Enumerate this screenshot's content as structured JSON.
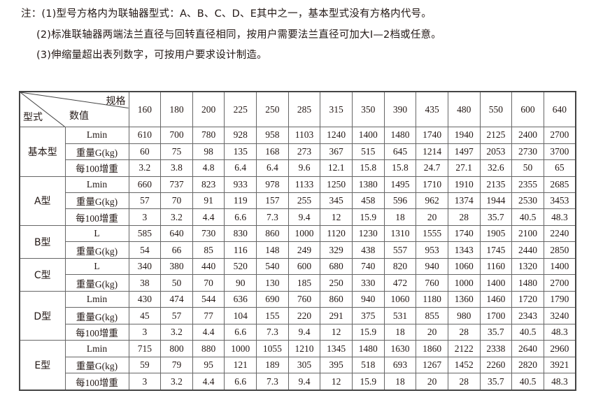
{
  "notes": [
    "注：(1)型号方格内为联轴器型式：A、B、C、D、E其中之一，基本型式没有方格内代号。",
    "(2)标准联轴器两端法兰直径与回转直径相同，按用户需要法兰直径可加大Ⅰ—2档或任意。",
    "(3)伸缩量超出表列数字，可按用户要求设计制造。"
  ],
  "table": {
    "corner": {
      "spec": "规格",
      "value": "数值",
      "type": "型式"
    },
    "specs": [
      "160",
      "180",
      "200",
      "225",
      "250",
      "285",
      "315",
      "350",
      "390",
      "435",
      "480",
      "550",
      "600",
      "640"
    ],
    "groups": [
      {
        "type": "基本型",
        "rows": [
          {
            "param": "Lmin",
            "values": [
              "610",
              "700",
              "780",
              "928",
              "958",
              "1103",
              "1240",
              "1400",
              "1480",
              "1740",
              "1940",
              "2125",
              "2400",
              "2700"
            ]
          },
          {
            "param": "重量G(kg)",
            "values": [
              "60",
              "75",
              "98",
              "135",
              "168",
              "273",
              "367",
              "515",
              "645",
              "1214",
              "1497",
              "2053",
              "2730",
              "3700"
            ]
          },
          {
            "param": "每100增重",
            "values": [
              "3.2",
              "3.8",
              "4.8",
              "6.4",
              "6.4",
              "9.6",
              "12.1",
              "15.8",
              "15.8",
              "24.7",
              "27.1",
              "32.6",
              "50",
              "65"
            ]
          }
        ]
      },
      {
        "type": "A型",
        "rows": [
          {
            "param": "Lmin",
            "values": [
              "660",
              "737",
              "823",
              "933",
              "978",
              "1133",
              "1250",
              "1380",
              "1495",
              "1710",
              "1910",
              "2135",
              "2355",
              "2685"
            ]
          },
          {
            "param": "重量G(kg)",
            "values": [
              "57",
              "70",
              "91",
              "119",
              "157",
              "255",
              "345",
              "458",
              "596",
              "962",
              "1374",
              "1944",
              "2530",
              "3453"
            ]
          },
          {
            "param": "每100增重",
            "values": [
              "3",
              "3.2",
              "4.4",
              "6.6",
              "7.3",
              "9.4",
              "12",
              "15.9",
              "18",
              "20",
              "28",
              "35.7",
              "40.5",
              "48.3"
            ]
          }
        ]
      },
      {
        "type": "B型",
        "rows": [
          {
            "param": "L",
            "values": [
              "585",
              "640",
              "730",
              "830",
              "860",
              "1000",
              "1120",
              "1230",
              "1310",
              "1555",
              "1740",
              "1905",
              "2100",
              "2240"
            ]
          },
          {
            "param": "重量G(kg)",
            "values": [
              "54",
              "66",
              "85",
              "116",
              "148",
              "249",
              "329",
              "438",
              "557",
              "953",
              "1343",
              "1745",
              "2440",
              "2850"
            ]
          }
        ]
      },
      {
        "type": "C型",
        "rows": [
          {
            "param": "L",
            "values": [
              "340",
              "380",
              "440",
              "520",
              "540",
              "600",
              "680",
              "740",
              "820",
              "940",
              "1060",
              "1160",
              "1320",
              "1400"
            ]
          },
          {
            "param": "重量G(kg)",
            "values": [
              "38",
              "50",
              "70",
              "90",
              "130",
              "185",
              "250",
              "330",
              "472",
              "760",
              "1000",
              "1400",
              "1480",
              "2700"
            ]
          }
        ]
      },
      {
        "type": "D型",
        "rows": [
          {
            "param": "Lmin",
            "values": [
              "430",
              "474",
              "544",
              "636",
              "690",
              "760",
              "860",
              "940",
              "1060",
              "1180",
              "1360",
              "1460",
              "1720",
              "1790"
            ]
          },
          {
            "param": "重量G(kg)",
            "values": [
              "45",
              "57",
              "77",
              "104",
              "155",
              "220",
              "291",
              "375",
              "531",
              "855",
              "980",
              "1700",
              "2343",
              "3240"
            ]
          },
          {
            "param": "每100增重",
            "values": [
              "3",
              "3.2",
              "4.4",
              "6.6",
              "7.3",
              "9.4",
              "12",
              "15.9",
              "18",
              "20",
              "28",
              "35.7",
              "40.5",
              "48.3"
            ]
          }
        ]
      },
      {
        "type": "E型",
        "rows": [
          {
            "param": "Lmin",
            "values": [
              "715",
              "800",
              "880",
              "1000",
              "1055",
              "1210",
              "1345",
              "1480",
              "1630",
              "1860",
              "2122",
              "2338",
              "2640",
              "2960"
            ]
          },
          {
            "param": "重量G(kg)",
            "values": [
              "59",
              "79",
              "95",
              "121",
              "189",
              "305",
              "395",
              "518",
              "693",
              "1267",
              "1452",
              "2260",
              "2820",
              "3921"
            ]
          },
          {
            "param": "每100增重",
            "values": [
              "3",
              "3.2",
              "4.4",
              "6.6",
              "7.3",
              "9.4",
              "12",
              "15.9",
              "18",
              "20",
              "28",
              "35.7",
              "40.5",
              "48.3"
            ]
          }
        ]
      }
    ]
  }
}
